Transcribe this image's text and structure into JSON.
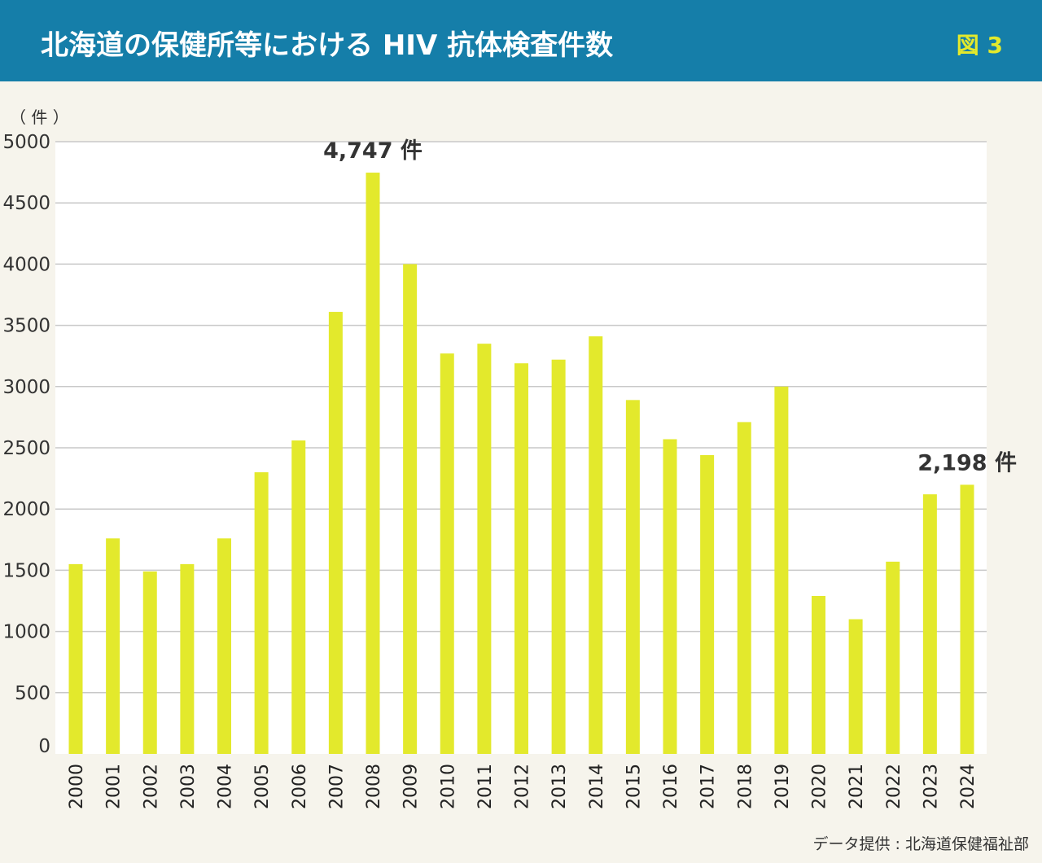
{
  "header": {
    "title": "北海道の保健所等における HIV 抗体検査件数",
    "figure_label": "図 3"
  },
  "colors": {
    "header_bg": "#157ea9",
    "bar": "#e3e92c",
    "figure_label": "#e3e92c",
    "plot_bg": "#ffffff",
    "page_bg": "#f6f4ec",
    "grid": "#c8c8c8"
  },
  "chart_data": {
    "type": "bar",
    "title": "北海道の保健所等における HIV 抗体検査件数",
    "ylabel": "（ 件 ）",
    "xlabel": "",
    "ylim": [
      0,
      5000
    ],
    "yticks": [
      0,
      500,
      1000,
      1500,
      2000,
      2500,
      3000,
      3500,
      4000,
      4500,
      5000
    ],
    "grid": true,
    "categories": [
      "2000",
      "2001",
      "2002",
      "2003",
      "2004",
      "2005",
      "2006",
      "2007",
      "2008",
      "2009",
      "2010",
      "2011",
      "2012",
      "2013",
      "2014",
      "2015",
      "2016",
      "2017",
      "2018",
      "2019",
      "2020",
      "2021",
      "2022",
      "2023",
      "2024"
    ],
    "values": [
      1550,
      1760,
      1490,
      1550,
      1760,
      2300,
      2560,
      3610,
      4747,
      4000,
      3270,
      3350,
      3190,
      3220,
      3410,
      2890,
      2570,
      2440,
      2710,
      3000,
      1290,
      1100,
      1570,
      2120,
      2198
    ],
    "annotations": [
      {
        "category": "2008",
        "text": "4,747 件"
      },
      {
        "category": "2024",
        "text": "2,198 件"
      }
    ]
  },
  "source": "データ提供 : 北海道保健福祉部"
}
